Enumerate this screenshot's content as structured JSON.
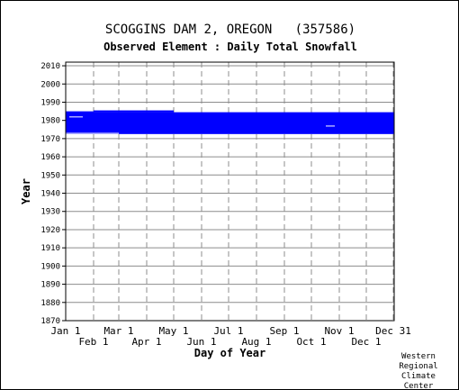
{
  "chart_data": {
    "type": "bar",
    "title": "SCOGGINS DAM 2, OREGON   (357586)",
    "subtitle": "Observed Element : Daily Total Snowfall",
    "xlabel": "Day of Year",
    "ylabel": "Year",
    "xlim": [
      1,
      366
    ],
    "ylim": [
      1870,
      2012
    ],
    "yticks": [
      1870,
      1880,
      1890,
      1900,
      1910,
      1920,
      1930,
      1940,
      1950,
      1960,
      1970,
      1980,
      1990,
      2000,
      2010
    ],
    "xticks": [
      {
        "label": "Jan 1",
        "day": 1,
        "row": "top"
      },
      {
        "label": "Feb 1",
        "day": 32,
        "row": "bottom"
      },
      {
        "label": "Mar 1",
        "day": 60,
        "row": "top"
      },
      {
        "label": "Apr 1",
        "day": 91,
        "row": "bottom"
      },
      {
        "label": "May 1",
        "day": 121,
        "row": "top"
      },
      {
        "label": "Jun 1",
        "day": 152,
        "row": "bottom"
      },
      {
        "label": "Jul 1",
        "day": 182,
        "row": "top"
      },
      {
        "label": "Aug 1",
        "day": 213,
        "row": "bottom"
      },
      {
        "label": "Sep 1",
        "day": 244,
        "row": "top"
      },
      {
        "label": "Oct 1",
        "day": 274,
        "row": "bottom"
      },
      {
        "label": "Nov 1",
        "day": 305,
        "row": "top"
      },
      {
        "label": "Dec 1",
        "day": 335,
        "row": "bottom"
      },
      {
        "label": "Dec 31",
        "day": 365,
        "row": "top"
      }
    ],
    "grid": true,
    "series": [
      {
        "color": "#0000ff",
        "ranges": [
          {
            "day_start": 1,
            "day_end": 366,
            "year_start": 1972.5,
            "year_end": 1984.5
          },
          {
            "day_start": 32,
            "day_end": 121,
            "year_start": 1984.5,
            "year_end": 1985.5
          },
          {
            "day_start": 1,
            "day_end": 32,
            "year_start": 1984.5,
            "year_end": 1985.0
          }
        ],
        "gaps": [
          {
            "day_start": 5,
            "day_end": 20,
            "year_start": 1981.5,
            "year_end": 1982.5
          },
          {
            "day_start": 290,
            "day_end": 300,
            "year_start": 1976.5,
            "year_end": 1977.5
          },
          {
            "day_start": 1,
            "day_end": 60,
            "year_start": 1972.5,
            "year_end": 1973.5
          }
        ]
      }
    ]
  },
  "credit": [
    "Western",
    "Regional",
    "Climate",
    "Center"
  ]
}
